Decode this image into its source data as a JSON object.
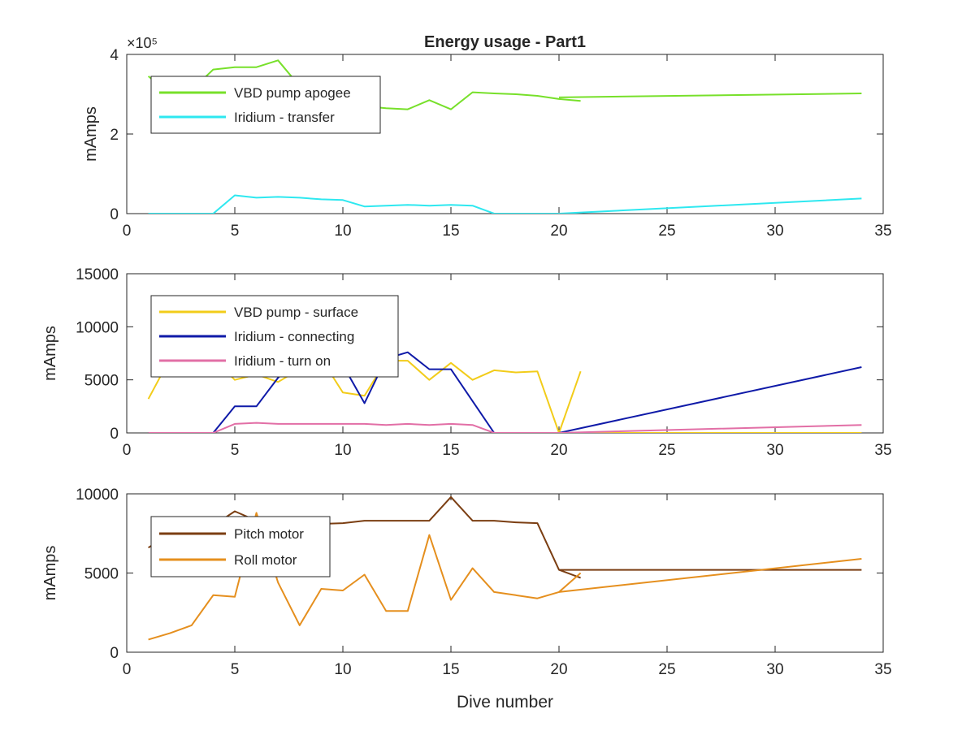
{
  "chart_data": [
    {
      "type": "line",
      "title": "Energy usage - Part1",
      "xlabel": "",
      "ylabel": "mAmps",
      "xlim": [
        0,
        35
      ],
      "ylim": [
        0,
        400000
      ],
      "y_exponent": "×10⁵",
      "legend_position": "top-left",
      "x_ticks": [
        "0",
        "5",
        "10",
        "15",
        "20",
        "25",
        "30",
        "35"
      ],
      "y_ticks": [
        "0",
        "2",
        "4"
      ],
      "y_tick_values": [
        0,
        200000,
        400000
      ],
      "series": [
        {
          "name": "VBD pump apogee",
          "color": "#77e02a",
          "segments": [
            {
              "x": [
                1,
                2,
                3,
                4,
                5,
                6,
                7,
                8,
                9,
                10,
                11,
                12,
                13,
                14,
                15,
                16,
                17,
                18,
                19,
                20,
                21
              ],
              "y": [
                345000,
                300000,
                310000,
                362000,
                368000,
                368000,
                385000,
                320000,
                300000,
                290000,
                270000,
                265000,
                262000,
                285000,
                262000,
                305000,
                302000,
                300000,
                296000,
                288000,
                283000
              ]
            },
            {
              "x": [
                20,
                34
              ],
              "y": [
                292000,
                302000
              ]
            }
          ]
        },
        {
          "name": "Iridium - transfer",
          "color": "#2ee8f0",
          "segments": [
            {
              "x": [
                1,
                2,
                3,
                4,
                5,
                6,
                7,
                8,
                9,
                10,
                11,
                12,
                13,
                14,
                15,
                16,
                17,
                18,
                19,
                20,
                34
              ],
              "y": [
                0,
                0,
                0,
                0,
                46000,
                40000,
                42000,
                40000,
                36000,
                34000,
                18000,
                20000,
                22000,
                20000,
                22000,
                20000,
                0,
                0,
                0,
                0,
                38000
              ]
            }
          ]
        }
      ]
    },
    {
      "type": "line",
      "title": "",
      "xlabel": "",
      "ylabel": "mAmps",
      "xlim": [
        0,
        35
      ],
      "ylim": [
        0,
        15000
      ],
      "legend_position": "top-left",
      "x_ticks": [
        "0",
        "5",
        "10",
        "15",
        "20",
        "25",
        "30",
        "35"
      ],
      "y_ticks": [
        "0",
        "5000",
        "10000",
        "15000"
      ],
      "y_tick_values": [
        0,
        5000,
        10000,
        15000
      ],
      "series": [
        {
          "name": "VBD pump - surface",
          "color": "#f2cc1a",
          "segments": [
            {
              "x": [
                1,
                2,
                3,
                4,
                5,
                6,
                7,
                8,
                9,
                10,
                11,
                12,
                13,
                14,
                15,
                16,
                17,
                18,
                19,
                20,
                21
              ],
              "y": [
                3200,
                7000,
                7000,
                7000,
                5000,
                5500,
                4800,
                6000,
                7000,
                3800,
                3500,
                6800,
                6800,
                5000,
                6600,
                5000,
                5900,
                5700,
                5800,
                0,
                5800
              ]
            },
            {
              "x": [
                20,
                34
              ],
              "y": [
                0,
                0
              ]
            }
          ]
        },
        {
          "name": "Iridium - connecting",
          "color": "#0f1aa8",
          "segments": [
            {
              "x": [
                1,
                2,
                3,
                4,
                5,
                6,
                7,
                8,
                9,
                10,
                11,
                12,
                13,
                14,
                15,
                16,
                17,
                18,
                19,
                20,
                34
              ],
              "y": [
                0,
                0,
                0,
                0,
                2500,
                2500,
                5200,
                7000,
                7000,
                6400,
                2800,
                7000,
                7600,
                6000,
                6000,
                3000,
                0,
                0,
                0,
                0,
                6200
              ]
            }
          ]
        },
        {
          "name": "Iridium - turn on",
          "color": "#e26fa6",
          "segments": [
            {
              "x": [
                1,
                2,
                3,
                4,
                5,
                6,
                7,
                8,
                9,
                10,
                11,
                12,
                13,
                14,
                15,
                16,
                17,
                18,
                19,
                20,
                34
              ],
              "y": [
                0,
                0,
                0,
                0,
                850,
                950,
                850,
                850,
                850,
                850,
                850,
                750,
                850,
                750,
                850,
                750,
                0,
                0,
                0,
                0,
                750
              ]
            }
          ]
        }
      ]
    },
    {
      "type": "line",
      "title": "",
      "xlabel": "Dive number",
      "ylabel": "mAmps",
      "xlim": [
        0,
        35
      ],
      "ylim": [
        0,
        10000
      ],
      "legend_position": "top-left",
      "x_ticks": [
        "0",
        "5",
        "10",
        "15",
        "20",
        "25",
        "30",
        "35"
      ],
      "y_ticks": [
        "0",
        "5000",
        "10000"
      ],
      "y_tick_values": [
        0,
        5000,
        10000
      ],
      "series": [
        {
          "name": "Pitch motor",
          "color": "#7b3e12",
          "segments": [
            {
              "x": [
                1,
                2,
                3,
                4,
                5,
                6,
                7,
                8,
                9,
                10,
                11,
                12,
                13,
                14,
                15,
                16,
                17,
                18,
                19,
                20,
                21
              ],
              "y": [
                6600,
                7500,
                7800,
                8000,
                8900,
                8300,
                8100,
                8000,
                8100,
                8150,
                8300,
                8300,
                8300,
                8300,
                9800,
                8300,
                8300,
                8200,
                8150,
                5200,
                4700
              ]
            },
            {
              "x": [
                20,
                34
              ],
              "y": [
                5200,
                5200
              ]
            }
          ]
        },
        {
          "name": "Roll motor",
          "color": "#e58f1e",
          "segments": [
            {
              "x": [
                1,
                2,
                3,
                4,
                5,
                6,
                7,
                8,
                9,
                10,
                11,
                12,
                13,
                14,
                15,
                16,
                17,
                18,
                19,
                20,
                21
              ],
              "y": [
                800,
                1200,
                1700,
                3600,
                3500,
                8800,
                4400,
                1700,
                4000,
                3900,
                4900,
                2600,
                2600,
                7400,
                3300,
                5300,
                3800,
                3600,
                3400,
                3800,
                5000
              ]
            },
            {
              "x": [
                20,
                34
              ],
              "y": [
                3800,
                5900
              ]
            }
          ]
        }
      ]
    }
  ]
}
